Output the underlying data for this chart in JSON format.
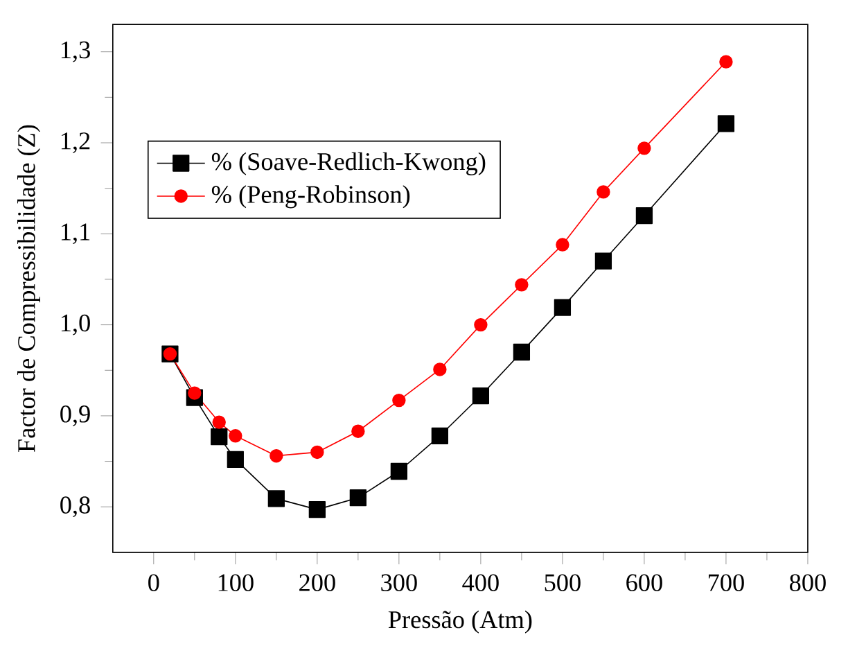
{
  "chart_data": {
    "type": "line",
    "xlabel": "Pressão (Atm)",
    "ylabel": "Factor de Compressibilidade (Z)",
    "xlim": [
      -50,
      800
    ],
    "xticks": [
      0,
      100,
      200,
      300,
      400,
      500,
      600,
      700,
      800
    ],
    "ylim": [
      0.75,
      1.33
    ],
    "yticks": [
      {
        "value": 0.8,
        "label": "0,8"
      },
      {
        "value": 0.9,
        "label": "0,9"
      },
      {
        "value": 1.0,
        "label": "1,0"
      },
      {
        "value": 1.1,
        "label": "1,1"
      },
      {
        "value": 1.2,
        "label": "1,2"
      },
      {
        "value": 1.3,
        "label": "1,3"
      }
    ],
    "legend": "top left",
    "grid": false,
    "series": [
      {
        "name": "% (Soave-Redlich-Kwong)",
        "color": "#000000",
        "marker": "square",
        "x": [
          20,
          50,
          80,
          100,
          150,
          200,
          250,
          300,
          350,
          400,
          450,
          500,
          550,
          600,
          700
        ],
        "values": [
          0.968,
          0.92,
          0.877,
          0.852,
          0.809,
          0.797,
          0.81,
          0.839,
          0.878,
          0.922,
          0.97,
          1.019,
          1.07,
          1.12,
          1.221
        ]
      },
      {
        "name": "% (Peng-Robinson)",
        "color": "#ff0000",
        "marker": "circle",
        "x": [
          20,
          50,
          80,
          100,
          150,
          200,
          250,
          300,
          350,
          400,
          450,
          500,
          550,
          600,
          700
        ],
        "values": [
          0.968,
          0.925,
          0.893,
          0.878,
          0.856,
          0.86,
          0.883,
          0.917,
          0.951,
          1.0,
          1.044,
          1.088,
          1.146,
          1.194,
          1.289
        ]
      }
    ]
  }
}
